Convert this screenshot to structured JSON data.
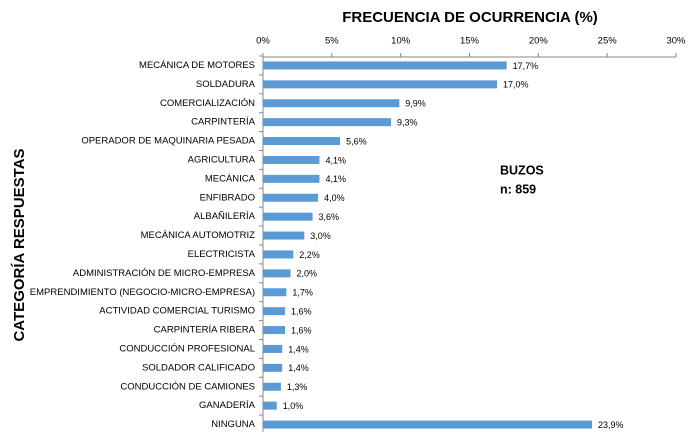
{
  "chart_data": {
    "type": "hbar",
    "title": "FRECUENCIA DE OCURRENCIA (%)",
    "y_label": "CATEGORÍA RESPUESTAS",
    "annotations": [
      "BUZOS",
      "n: 859"
    ],
    "categories": [
      "MECÁNICA DE MOTORES",
      "SOLDADURA",
      "COMERCIALIZACIÓN",
      "CARPINTERÍA",
      "OPERADOR DE MAQUINARIA PESADA",
      "AGRICULTURA",
      "MECÁNICA",
      "ENFIBRADO",
      "ALBAÑILERÍA",
      "MECÁNICA AUTOMOTRIZ",
      "ELECTRICISTA",
      "ADMINISTRACIÓN DE MICRO-EMPRESA",
      "EMPRENDIMIENTO (NEGOCIO-MICRO-EMPRESA)",
      "ACTIVIDAD COMERCIAL TURISMO",
      "CARPINTERÍA RIBERA",
      "CONDUCCIÓN PROFESIONAL",
      "SOLDADOR CALIFICADO",
      "CONDUCCIÓN DE CAMIONES",
      "GANADERÍA",
      "NINGUNA"
    ],
    "values": [
      17.7,
      17.0,
      9.9,
      9.3,
      5.6,
      4.1,
      4.1,
      4.0,
      3.6,
      3.0,
      2.2,
      2.0,
      1.7,
      1.6,
      1.6,
      1.4,
      1.4,
      1.3,
      1.0,
      23.9
    ],
    "value_labels": [
      "17,7%",
      "17,0%",
      "9,9%",
      "9,3%",
      "5,6%",
      "4,1%",
      "4,1%",
      "4,0%",
      "3,6%",
      "3,0%",
      "2,2%",
      "2,0%",
      "1,7%",
      "1,6%",
      "1,6%",
      "1,4%",
      "1,4%",
      "1,3%",
      "1,0%",
      "23,9%"
    ],
    "color": "#5b9bd5",
    "xlim": [
      0,
      30
    ],
    "xticks": [
      {
        "value": 0,
        "label": "0%"
      },
      {
        "value": 5,
        "label": "5%"
      },
      {
        "value": 10,
        "label": "10%"
      },
      {
        "value": 15,
        "label": "15%"
      },
      {
        "value": 20,
        "label": "20%"
      },
      {
        "value": 25,
        "label": "25%"
      },
      {
        "value": 30,
        "label": "30%"
      }
    ],
    "grid": false
  }
}
